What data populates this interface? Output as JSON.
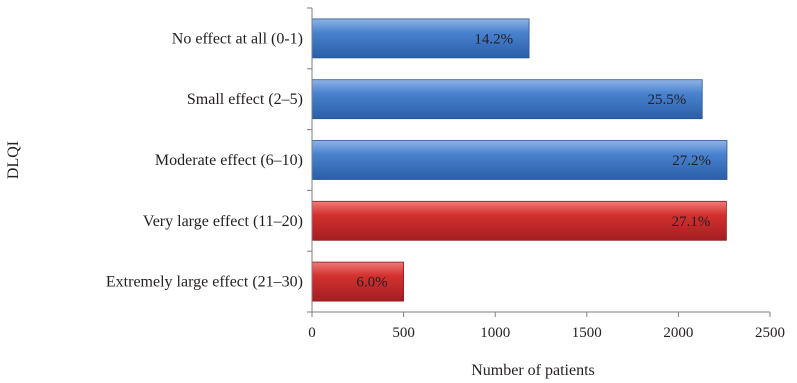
{
  "chart_data": {
    "type": "bar",
    "orientation": "horizontal",
    "categories": [
      "No effect at all (0-1)",
      "Small effect (2–5)",
      "Moderate effect (6–10)",
      "Very large effect (11–20)",
      "Extremely large effect (21–30)"
    ],
    "values": [
      1185,
      2130,
      2265,
      2262,
      500
    ],
    "data_labels": [
      "14.2%",
      "25.5%",
      "27.2%",
      "27.1%",
      "6.0%"
    ],
    "bar_colors": [
      "#3f77c3",
      "#3f77c3",
      "#3f77c3",
      "#c9262c",
      "#c9262c"
    ],
    "xlabel": "Number of patients",
    "ylabel": "DLQI",
    "xlim": [
      0,
      2500
    ],
    "xticks": [
      0,
      500,
      1000,
      1500,
      2000,
      2500
    ],
    "grid": false,
    "legend": "none"
  }
}
